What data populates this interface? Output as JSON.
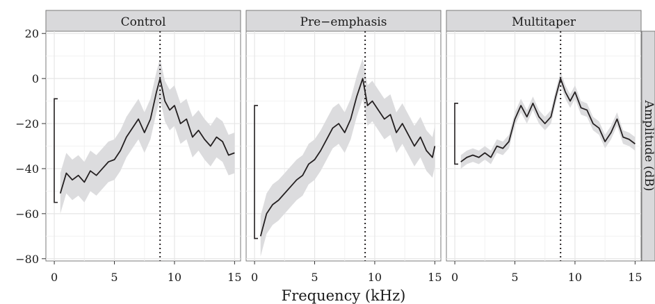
{
  "chart_data": {
    "type": "line",
    "xlabel": "Frequency (kHz)",
    "ylabel": "Amplitude (dB)",
    "xlim": [
      -0.7,
      15.5
    ],
    "ylim": [
      -81,
      21
    ],
    "xticks": [
      0,
      5,
      10,
      15
    ],
    "xtick_labels": [
      "0",
      "5",
      "10",
      "15"
    ],
    "yticks": [
      20,
      0,
      -20,
      -40,
      -60,
      -80
    ],
    "ytick_labels": [
      "20",
      "0",
      "−20",
      "−40",
      "−60",
      "−80"
    ],
    "grid": true,
    "band_color": "#dcdcde",
    "line_color": "#231f20",
    "panels": [
      {
        "title": "Control",
        "vline_x": 8.8,
        "bracket": [
          -9,
          -55
        ],
        "band_width": 9,
        "series": [
          {
            "x": 0.5,
            "y": -51
          },
          {
            "x": 1.0,
            "y": -42
          },
          {
            "x": 1.5,
            "y": -45
          },
          {
            "x": 2.0,
            "y": -43
          },
          {
            "x": 2.5,
            "y": -46
          },
          {
            "x": 3.0,
            "y": -41
          },
          {
            "x": 3.5,
            "y": -43
          },
          {
            "x": 4.0,
            "y": -40
          },
          {
            "x": 4.5,
            "y": -37
          },
          {
            "x": 5.0,
            "y": -36
          },
          {
            "x": 5.5,
            "y": -32
          },
          {
            "x": 6.0,
            "y": -26
          },
          {
            "x": 6.5,
            "y": -22
          },
          {
            "x": 7.0,
            "y": -18
          },
          {
            "x": 7.5,
            "y": -24
          },
          {
            "x": 8.0,
            "y": -18
          },
          {
            "x": 8.5,
            "y": -6
          },
          {
            "x": 8.8,
            "y": 0
          },
          {
            "x": 9.2,
            "y": -10
          },
          {
            "x": 9.6,
            "y": -14
          },
          {
            "x": 10.0,
            "y": -12
          },
          {
            "x": 10.5,
            "y": -20
          },
          {
            "x": 11.0,
            "y": -18
          },
          {
            "x": 11.5,
            "y": -26
          },
          {
            "x": 12.0,
            "y": -23
          },
          {
            "x": 12.5,
            "y": -27
          },
          {
            "x": 13.0,
            "y": -30
          },
          {
            "x": 13.5,
            "y": -26
          },
          {
            "x": 14.0,
            "y": -28
          },
          {
            "x": 14.5,
            "y": -34
          },
          {
            "x": 15.0,
            "y": -33
          }
        ]
      },
      {
        "title": "Pre−emphasis",
        "vline_x": 9.2,
        "bracket": [
          -12,
          -71
        ],
        "band_width": 9,
        "series": [
          {
            "x": 0.5,
            "y": -70
          },
          {
            "x": 1.0,
            "y": -60
          },
          {
            "x": 1.5,
            "y": -56
          },
          {
            "x": 2.0,
            "y": -54
          },
          {
            "x": 2.5,
            "y": -51
          },
          {
            "x": 3.0,
            "y": -48
          },
          {
            "x": 3.5,
            "y": -45
          },
          {
            "x": 4.0,
            "y": -43
          },
          {
            "x": 4.5,
            "y": -38
          },
          {
            "x": 5.0,
            "y": -36
          },
          {
            "x": 5.5,
            "y": -32
          },
          {
            "x": 6.0,
            "y": -27
          },
          {
            "x": 6.5,
            "y": -22
          },
          {
            "x": 7.0,
            "y": -20
          },
          {
            "x": 7.5,
            "y": -24
          },
          {
            "x": 8.0,
            "y": -18
          },
          {
            "x": 8.5,
            "y": -8
          },
          {
            "x": 9.0,
            "y": 0
          },
          {
            "x": 9.4,
            "y": -12
          },
          {
            "x": 9.8,
            "y": -10
          },
          {
            "x": 10.3,
            "y": -14
          },
          {
            "x": 10.8,
            "y": -18
          },
          {
            "x": 11.3,
            "y": -16
          },
          {
            "x": 11.8,
            "y": -24
          },
          {
            "x": 12.3,
            "y": -20
          },
          {
            "x": 12.8,
            "y": -25
          },
          {
            "x": 13.3,
            "y": -30
          },
          {
            "x": 13.8,
            "y": -26
          },
          {
            "x": 14.3,
            "y": -32
          },
          {
            "x": 14.8,
            "y": -35
          },
          {
            "x": 15.0,
            "y": -30
          }
        ]
      },
      {
        "title": "Multitaper",
        "vline_x": 8.8,
        "bracket": [
          -11,
          -38
        ],
        "band_width": 3,
        "series": [
          {
            "x": 0.5,
            "y": -37
          },
          {
            "x": 1.0,
            "y": -35
          },
          {
            "x": 1.5,
            "y": -34
          },
          {
            "x": 2.0,
            "y": -35
          },
          {
            "x": 2.5,
            "y": -33
          },
          {
            "x": 3.0,
            "y": -35
          },
          {
            "x": 3.5,
            "y": -30
          },
          {
            "x": 4.0,
            "y": -31
          },
          {
            "x": 4.5,
            "y": -28
          },
          {
            "x": 5.0,
            "y": -18
          },
          {
            "x": 5.5,
            "y": -12
          },
          {
            "x": 6.0,
            "y": -17
          },
          {
            "x": 6.5,
            "y": -11
          },
          {
            "x": 7.0,
            "y": -17
          },
          {
            "x": 7.5,
            "y": -20
          },
          {
            "x": 8.0,
            "y": -17
          },
          {
            "x": 8.4,
            "y": -8
          },
          {
            "x": 8.8,
            "y": 0
          },
          {
            "x": 9.2,
            "y": -6
          },
          {
            "x": 9.6,
            "y": -10
          },
          {
            "x": 10.0,
            "y": -6
          },
          {
            "x": 10.5,
            "y": -13
          },
          {
            "x": 11.0,
            "y": -14
          },
          {
            "x": 11.5,
            "y": -20
          },
          {
            "x": 12.0,
            "y": -22
          },
          {
            "x": 12.5,
            "y": -28
          },
          {
            "x": 13.0,
            "y": -24
          },
          {
            "x": 13.5,
            "y": -18
          },
          {
            "x": 14.0,
            "y": -26
          },
          {
            "x": 14.5,
            "y": -27
          },
          {
            "x": 15.0,
            "y": -29
          }
        ]
      }
    ]
  }
}
